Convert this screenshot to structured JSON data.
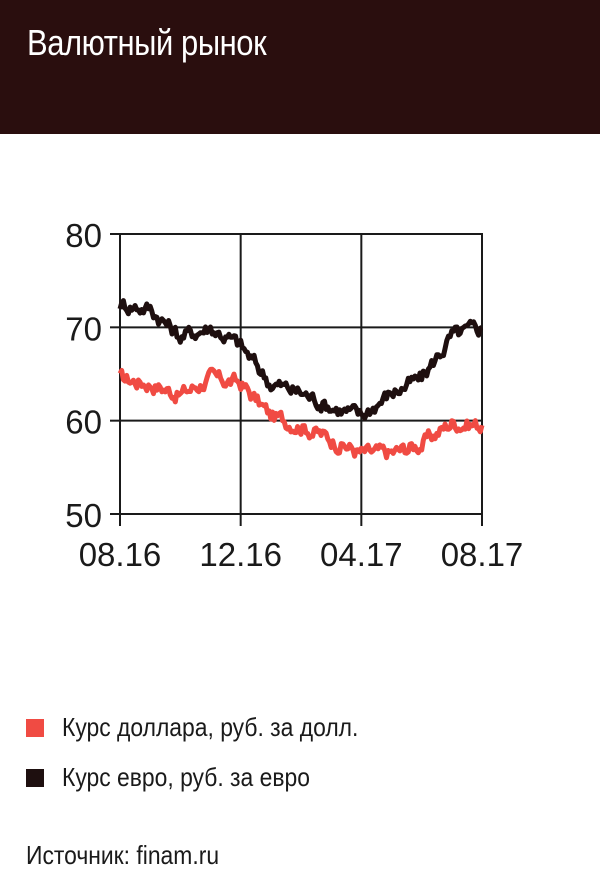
{
  "header": {
    "title": "Валютный рынок"
  },
  "colors": {
    "header_bg": "#2a0e0e",
    "usd": "#f04b43",
    "eur": "#1e0f0f",
    "axis": "#1a1a1a"
  },
  "chart_data": {
    "type": "line",
    "title": "",
    "xlabel": "",
    "ylabel": "",
    "ylim": [
      50,
      80
    ],
    "yticks": [
      "50",
      "60",
      "70",
      "80"
    ],
    "xticks": [
      "08.16",
      "12.16",
      "04.17",
      "08.17"
    ],
    "grid": true,
    "x": [
      "08.16",
      "09.16",
      "10.16",
      "11.16",
      "12.16",
      "01.17",
      "02.17",
      "03.17",
      "04.17",
      "05.17",
      "06.17",
      "07.17",
      "08.17"
    ],
    "series": [
      {
        "name": "Курс доллара, руб. за долл.",
        "color": "#f04b43",
        "values": [
          64.5,
          64.0,
          62.8,
          64.5,
          64.0,
          60.5,
          59.5,
          58.0,
          56.5,
          56.5,
          57.5,
          59.8,
          59.5
        ]
      },
      {
        "name": "Курс евро, руб. за евро",
        "color": "#1e0f0f",
        "values": [
          72.5,
          72.0,
          69.0,
          70.0,
          68.0,
          64.0,
          63.0,
          61.5,
          60.5,
          63.0,
          64.5,
          69.0,
          70.0
        ]
      }
    ]
  },
  "legend": {
    "items": [
      {
        "label": "Курс доллара, руб. за долл.",
        "color": "#f04b43"
      },
      {
        "label": "Курс евро, руб. за евро",
        "color": "#1e0f0f"
      }
    ]
  },
  "source": "Источник: finam.ru"
}
